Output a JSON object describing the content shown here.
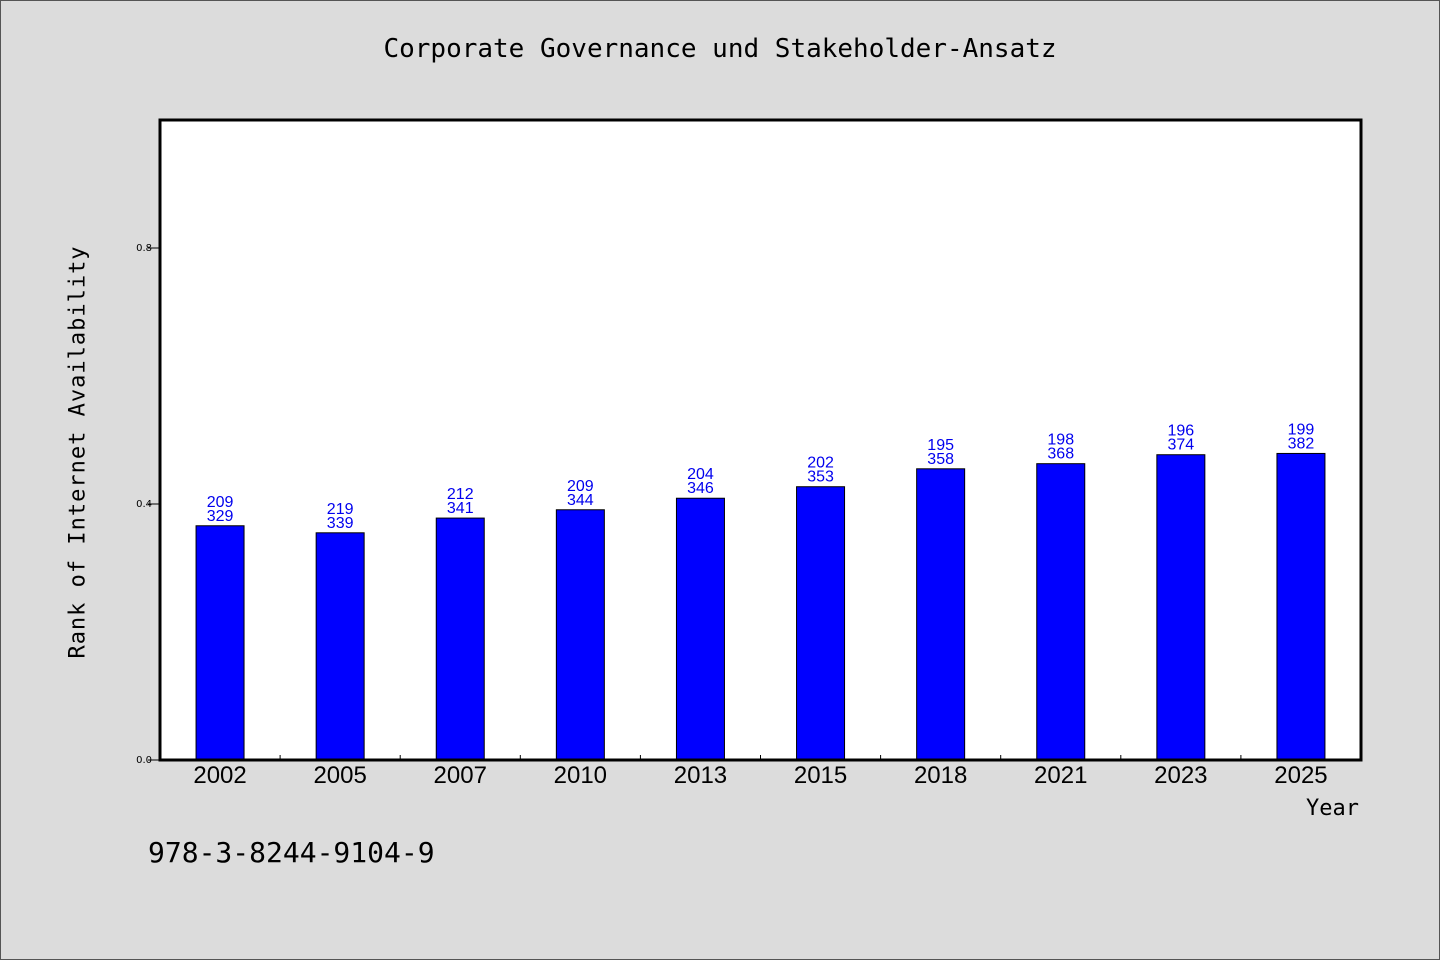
{
  "chart_data": {
    "type": "bar",
    "title": "Corporate Governance und Stakeholder-Ansatz",
    "xlabel": "Year",
    "ylabel": "Rank of Internet Availability",
    "categories": [
      "2002",
      "2005",
      "2007",
      "2010",
      "2013",
      "2015",
      "2018",
      "2021",
      "2023",
      "2025"
    ],
    "values": [
      0.366,
      0.355,
      0.378,
      0.391,
      0.409,
      0.427,
      0.455,
      0.463,
      0.477,
      0.479
    ],
    "label_top": [
      "209",
      "219",
      "212",
      "209",
      "204",
      "202",
      "195",
      "198",
      "196",
      "199"
    ],
    "label_bottom": [
      "329",
      "339",
      "341",
      "344",
      "346",
      "353",
      "358",
      "368",
      "374",
      "382"
    ],
    "ylim": [
      0,
      1.0
    ],
    "yticks": [
      0.0,
      0.4,
      0.8
    ],
    "ytick_labels": [
      "0.0",
      "0.4",
      "0.8"
    ],
    "grid": false,
    "bar_color": "#0000ff",
    "label_color": "#0000ee"
  },
  "footer": {
    "isbn": "978-3-8244-9104-9"
  }
}
